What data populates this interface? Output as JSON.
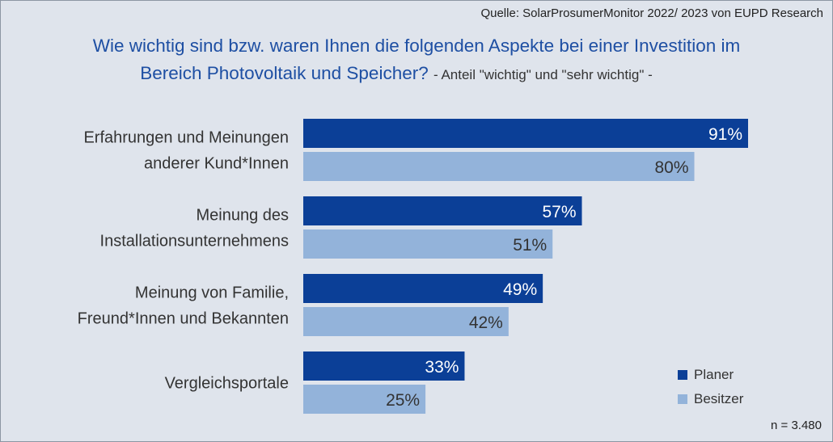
{
  "source": "Quelle: SolarProsumerMonitor 2022/ 2023 von EUPD Research",
  "title_line1": "Wie wichtig sind bzw. waren Ihnen die folgenden Aspekte bei einer Investition im",
  "title_line2": "Bereich Photovoltaik und Speicher?",
  "subtitle": "- Anteil \"wichtig\" und \"sehr wichtig\" -",
  "sample_size": "n = 3.480",
  "colors": {
    "planer": "#0b3f97",
    "besitzer": "#93b3da",
    "background": "#dfe4ec",
    "title": "#1e4fa3"
  },
  "chart_data": {
    "type": "bar",
    "orientation": "horizontal",
    "categories": [
      [
        "Erfahrungen und Meinungen",
        "anderer Kund*Innen"
      ],
      [
        "Meinung des",
        "Installationsunternehmens"
      ],
      [
        "Meinung von Familie,",
        "Freund*Innen und Bekannten"
      ],
      [
        "Vergleichsportale"
      ]
    ],
    "series": [
      {
        "name": "Planer",
        "values": [
          91,
          57,
          49,
          33
        ],
        "labels": [
          "91%",
          "57%",
          "49%",
          "33%"
        ]
      },
      {
        "name": "Besitzer",
        "values": [
          80,
          51,
          42,
          25
        ],
        "labels": [
          "80%",
          "51%",
          "42%",
          "25%"
        ]
      }
    ],
    "xlim": [
      0,
      100
    ],
    "unit": "%",
    "grid": false,
    "legend": "bottom-right"
  }
}
